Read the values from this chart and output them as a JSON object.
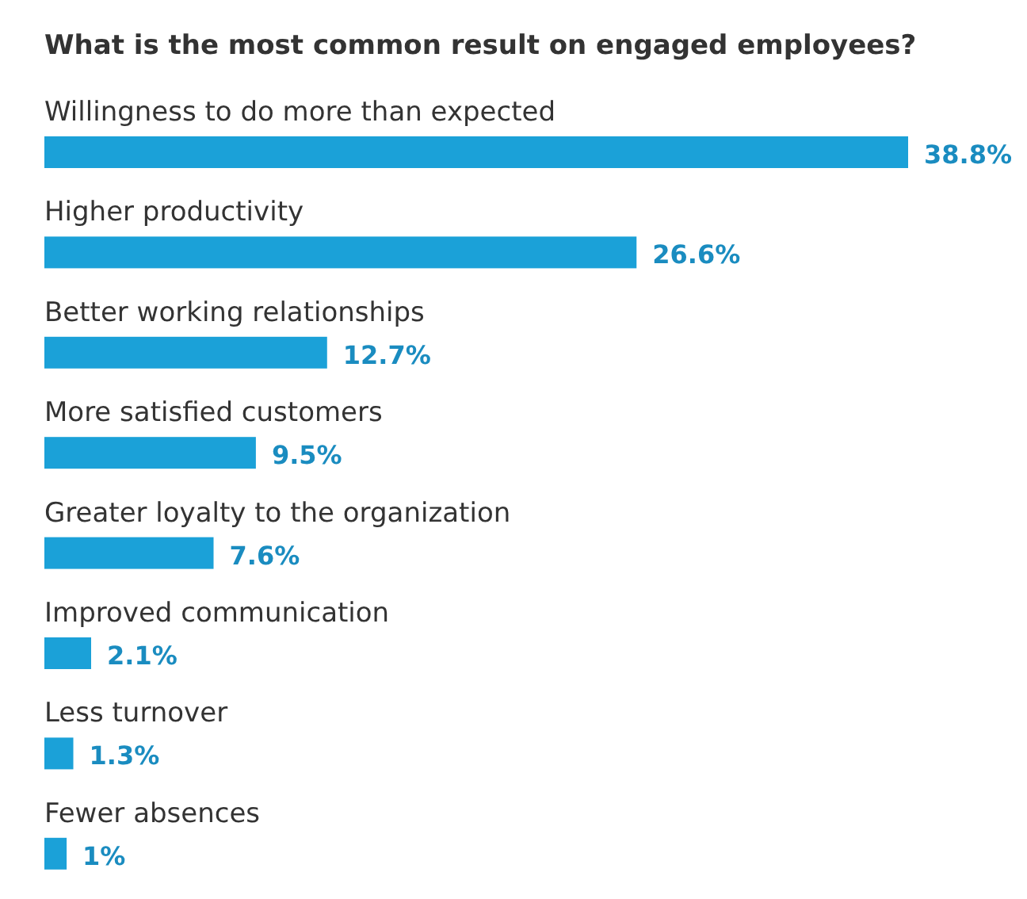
{
  "chart_data": {
    "type": "bar",
    "orientation": "horizontal",
    "title": "What is the most common result on engaged employees?",
    "categories": [
      "Willingness to do more than expected",
      "Higher productivity",
      "Better working relationships",
      "More satisfied customers",
      "Greater loyalty to the organization",
      "Improved communication",
      "Less turnover",
      "Fewer absences"
    ],
    "values": [
      38.8,
      26.6,
      12.7,
      9.5,
      7.6,
      2.1,
      1.3,
      1
    ],
    "value_labels": [
      "38.8%",
      "26.6%",
      "12.7%",
      "9.5%",
      "7.6%",
      "2.1%",
      "1.3%",
      "1%"
    ],
    "color": "#1ba1d8"
  }
}
